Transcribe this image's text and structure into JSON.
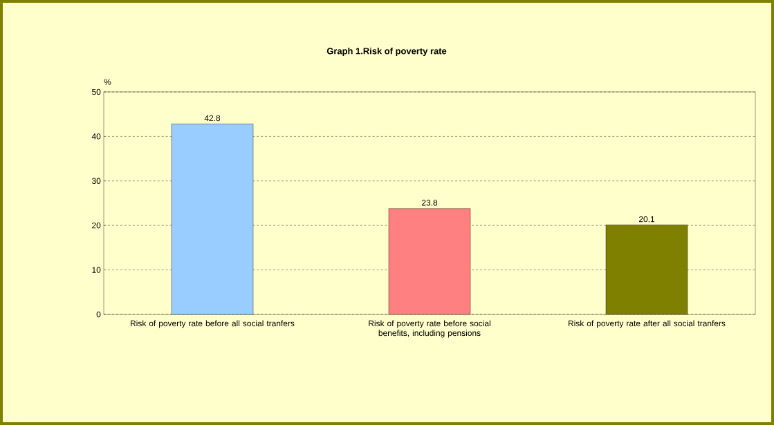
{
  "chart_data": {
    "type": "bar",
    "title": "Graph 1.Risk of poverty rate",
    "ylabel": "%",
    "categories": [
      "Risk of poverty rate before all social tranfers",
      "Risk of poverty rate before social benefits, including pensions",
      "Risk of poverty rate after all social tranfers"
    ],
    "values": [
      42.8,
      23.8,
      20.1
    ],
    "colors": [
      "#99ccff",
      "#ff8080",
      "#808000"
    ],
    "ylim": [
      0,
      50
    ],
    "yticks": [
      0,
      10,
      20,
      30,
      40,
      50
    ],
    "grid": "y",
    "data_labels": true
  }
}
